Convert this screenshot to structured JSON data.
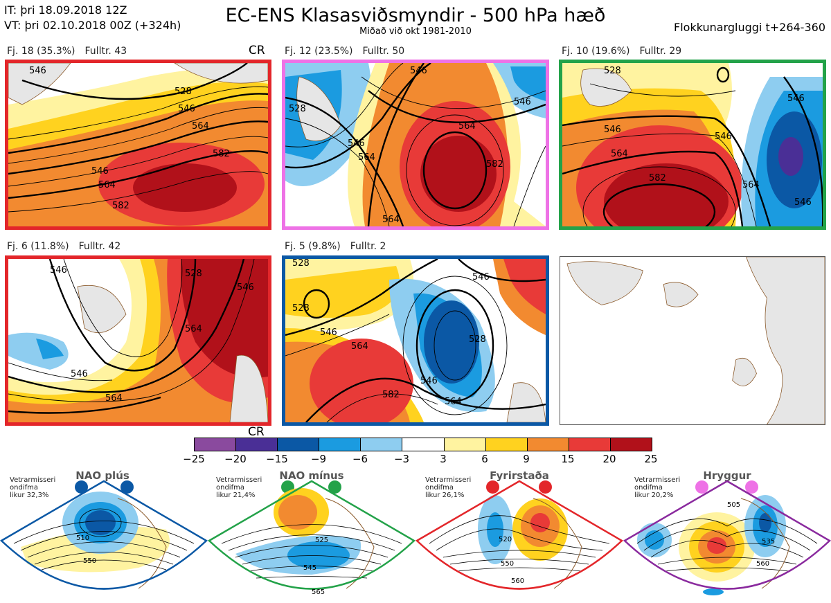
{
  "header": {
    "it_line": "IT: þri 18.09.2018 12Z",
    "vt_line": "VT: þri 02.10.2018 00Z  (+324h)",
    "title": "EC-ENS Klasasviðsmyndir - 500 hPa hæð",
    "subtitle": "Miðað við okt 1981-2010",
    "window": "Flokkunargluggi t+264-360"
  },
  "panels": [
    {
      "label": "Fj. 18 (35.3%)",
      "members": "Fulltr. 43",
      "tag": "CR",
      "border_color": "#e3262a",
      "contour_labels": [
        "546",
        "528",
        "546",
        "564",
        "582",
        "546",
        "564",
        "582"
      ]
    },
    {
      "label": "Fj. 12 (23.5%)",
      "members": "Fulltr. 50",
      "tag": "",
      "border_color": "#ee72e6",
      "contour_labels": [
        "528",
        "546",
        "546",
        "564",
        "546",
        "564",
        "582",
        "564"
      ]
    },
    {
      "label": "Fj. 10 (19.6%)",
      "members": "Fulltr. 29",
      "tag": "",
      "border_color": "#23a249",
      "contour_labels": [
        "528",
        "546",
        "546",
        "564",
        "582",
        "546",
        "564",
        "546"
      ]
    },
    {
      "label": "Fj. 6 (11.8%)",
      "members": "Fulltr. 42",
      "tag": "CR",
      "border_color": "#e3262a",
      "contour_labels": [
        "546",
        "528",
        "546",
        "564",
        "546",
        "564"
      ]
    },
    {
      "label": "Fj. 5 (9.8%)",
      "members": "Fulltr. 2",
      "tag": "",
      "border_color": "#0b58a5",
      "contour_labels": [
        "528",
        "546",
        "528",
        "546",
        "564",
        "528",
        "546",
        "564",
        "582"
      ]
    }
  ],
  "colorbar": {
    "ticks": [
      "−25",
      "−20",
      "−15",
      "−9",
      "−6",
      "−3",
      "3",
      "6",
      "9",
      "15",
      "20",
      "25"
    ],
    "colors": [
      "#8a4a9e",
      "#4a2f96",
      "#0b58a5",
      "#1b9be0",
      "#8ecdf0",
      "#ffffff",
      "#fff3a0",
      "#ffd21f",
      "#f28a30",
      "#e83a38",
      "#b1111a"
    ]
  },
  "regimes": [
    {
      "name": "NAO plús",
      "note": [
        "Vetrarmisseri",
        "ondifma",
        "likur 32,3%"
      ],
      "color": "#0b58a5",
      "dot": "#0b58a5",
      "contour_labels": [
        "510",
        "550"
      ]
    },
    {
      "name": "NAO mínus",
      "note": [
        "Vetrarmisseri",
        "ondifma",
        "likur 21,4%"
      ],
      "color": "#23a249",
      "dot": "#23a249",
      "contour_labels": [
        "525",
        "545",
        "565"
      ]
    },
    {
      "name": "Fyrirstaða",
      "note": [
        "Vetrarmisseri",
        "ondifma",
        "likur 26,1%"
      ],
      "color": "#e3262a",
      "dot": "#e3262a",
      "contour_labels": [
        "520",
        "550",
        "560"
      ]
    },
    {
      "name": "Hryggur",
      "note": [
        "Vetrarmisseri",
        "ondifma",
        "likur 20,2%"
      ],
      "color": "#8a2a9e",
      "dot": "#ee72e6",
      "contour_labels": [
        "505",
        "535",
        "560"
      ]
    }
  ]
}
